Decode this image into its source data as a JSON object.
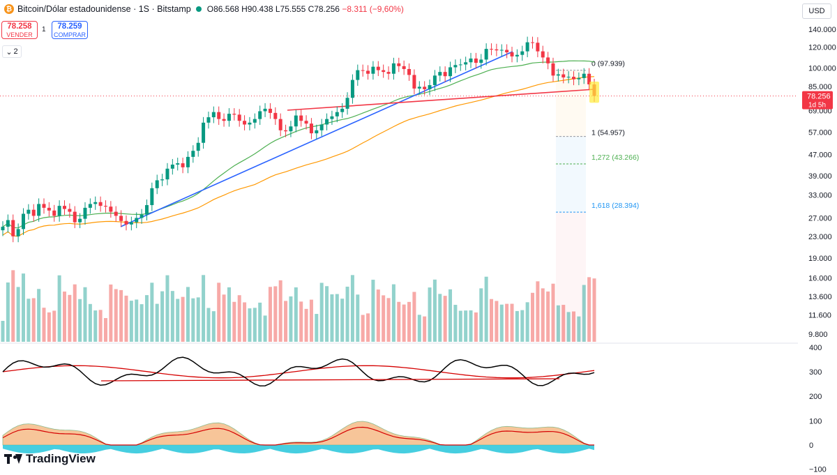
{
  "header": {
    "title": "Bitcoin/Dólar estadounidense · 1S · Bitstamp",
    "open": "O86.568",
    "high": "H90.438",
    "low": "L75.555",
    "close": "C78.256",
    "change": "−8.311 (−9,60%)"
  },
  "trade": {
    "sell_price": "78.258",
    "sell_label": "VENDER",
    "spread": "1",
    "buy_price": "78.259",
    "buy_label": "COMPRAR"
  },
  "indicators_collapse": "2",
  "currency": "USD",
  "price_label": {
    "value": "78.256",
    "countdown": "1d 5h"
  },
  "brand": "TradingView",
  "chart_data": [
    {
      "type": "candlestick",
      "title": "Bitcoin/Dólar estadounidense · 1S · Bitstamp",
      "y_scale": "log",
      "y_ticks": [
        "140.000",
        "120.000",
        "100.000",
        "85.000",
        "69.000",
        "57.000",
        "47.000",
        "39.000",
        "33.000",
        "27.000",
        "23.000",
        "19.000",
        "16.000",
        "13.600",
        "11.600",
        "9.800"
      ],
      "y_tick_values": [
        140000,
        120000,
        100000,
        85000,
        69000,
        57000,
        47000,
        39000,
        33000,
        27000,
        23000,
        19000,
        16000,
        13600,
        11600,
        9800
      ],
      "closes": [
        25000,
        26500,
        23000,
        24500,
        28000,
        29000,
        27500,
        30500,
        29500,
        28800,
        27500,
        30000,
        29200,
        28500,
        26000,
        26800,
        29500,
        30500,
        31000,
        30000,
        29800,
        28500,
        27500,
        26300,
        25500,
        26000,
        27000,
        27800,
        30200,
        35000,
        37500,
        37800,
        41500,
        43000,
        43500,
        42000,
        46000,
        48500,
        52000,
        62000,
        65000,
        68000,
        64000,
        63000,
        67000,
        66500,
        63000,
        61000,
        62000,
        64000,
        68500,
        70000,
        67500,
        64000,
        58000,
        57500,
        60000,
        66000,
        63000,
        61500,
        56500,
        58000,
        61000,
        64000,
        65500,
        68000,
        70000,
        77000,
        90000,
        98000,
        97500,
        95000,
        101000,
        98000,
        96500,
        95000,
        104000,
        101500,
        99000,
        94000,
        83500,
        84800,
        83000,
        86000,
        93500,
        96500,
        93000,
        100500,
        102500,
        103000,
        105000,
        108500,
        104500,
        107500,
        118000,
        117500,
        116500,
        117000,
        114500,
        110500,
        112000,
        115500,
        125000,
        124500,
        115500,
        109500,
        104000,
        93500,
        94500,
        92000,
        92500,
        90500,
        91500,
        95000,
        86568,
        78256
      ],
      "series": [
        {
          "name": "",
          "note": "green moving average"
        },
        {
          "name": "",
          "note": "orange moving average"
        }
      ],
      "fibonacci": [
        {
          "level": "0",
          "price": "(97.939)"
        },
        {
          "level": "1",
          "price": "(54.957)"
        },
        {
          "level": "1,272",
          "price": "(43.266)"
        },
        {
          "level": "1,618",
          "price": "(28.394)"
        }
      ],
      "current_price": 78256
    },
    {
      "type": "line",
      "y_ticks": [
        "400",
        "300",
        "200"
      ],
      "y_range": [
        200,
        400
      ]
    },
    {
      "type": "area",
      "y_ticks": [
        "100",
        "0",
        "−100"
      ],
      "y_range": [
        -100,
        150
      ]
    }
  ]
}
